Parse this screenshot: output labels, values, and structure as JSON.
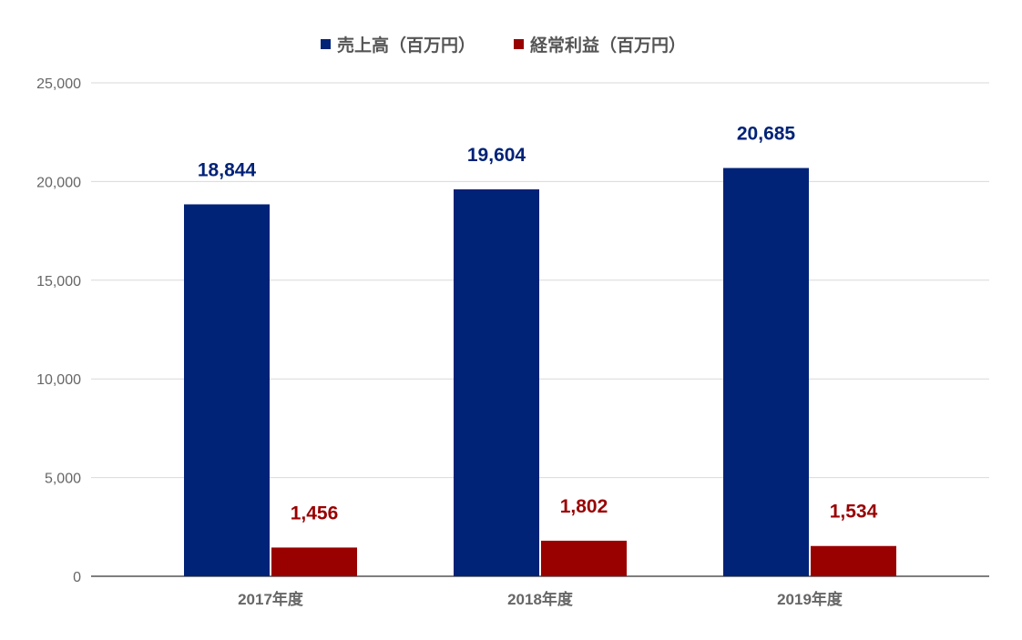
{
  "chart_data": {
    "type": "bar",
    "categories": [
      "2017年度",
      "2018年度",
      "2019年度"
    ],
    "series": [
      {
        "name": "売上高（百万円）",
        "values": [
          18844,
          19604,
          20685
        ],
        "labels": [
          "18,844",
          "19,604",
          "20,685"
        ],
        "color": "#002277"
      },
      {
        "name": "経常利益（百万円）",
        "values": [
          1456,
          1802,
          1534
        ],
        "labels": [
          "1,456",
          "1,802",
          "1,534"
        ],
        "color": "#990000"
      }
    ],
    "yticks": [
      "0",
      "5,000",
      "10,000",
      "15,000",
      "20,000",
      "25,000"
    ],
    "ylim": [
      0,
      25000
    ],
    "grid": true,
    "legend_position": "top-center",
    "title": "",
    "xlabel": "",
    "ylabel": ""
  }
}
